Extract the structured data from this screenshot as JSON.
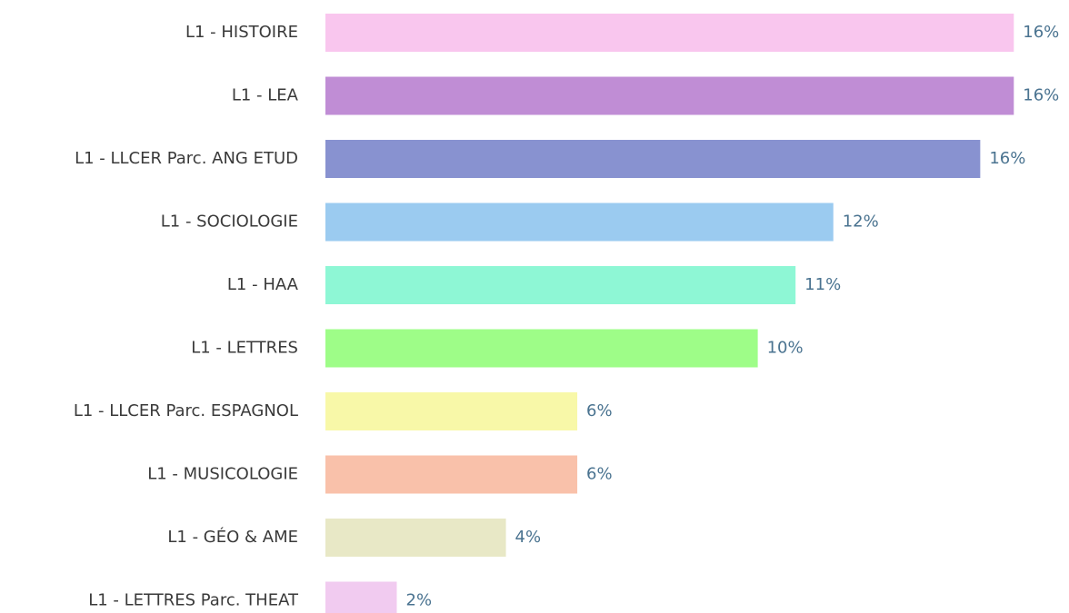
{
  "chart_data": {
    "type": "hbar",
    "categories": [
      "L1 - HISTOIRE",
      "L1 - LEA",
      "L1 - LLCER Parc. ANG ETUD",
      "L1 - SOCIOLOGIE",
      "L1 - HAA",
      "L1 - LETTRES",
      "L1 - LLCER Parc. ESPAGNOL",
      "L1 - MUSICOLOGIE",
      "L1 - GÉO & AME",
      "L1 - LETTRES Parc. THEAT"
    ],
    "values": [
      16.4,
      16.4,
      15.6,
      12.1,
      11.2,
      10.3,
      6.0,
      6.0,
      4.3,
      1.7
    ],
    "value_labels": [
      "16%",
      "16%",
      "16%",
      "12%",
      "11%",
      "10%",
      "6%",
      "6%",
      "4%",
      "2%"
    ],
    "colors": [
      "#f9c6ee",
      "#c08dd5",
      "#8892d0",
      "#9bcbf0",
      "#8ef7d5",
      "#9efd88",
      "#f8f8a8",
      "#f9c1aa",
      "#e8e8c6",
      "#f1cbf0"
    ],
    "xlim": [
      0,
      17
    ]
  }
}
